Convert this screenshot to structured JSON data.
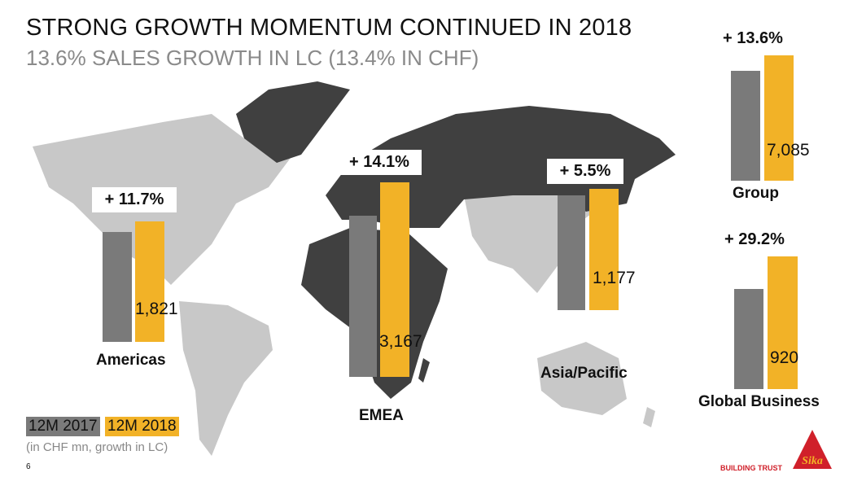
{
  "header": {
    "title": "STRONG GROWTH MOMENTUM CONTINUED IN 2018",
    "subtitle": "13.6% SALES GROWTH IN LC (13.4% IN CHF)"
  },
  "colors": {
    "2017": "#7a7a7a",
    "2018": "#f2b227",
    "map_light": "#c8c8c8",
    "map_dark": "#404040",
    "brand": "#d0202a"
  },
  "chart_data": {
    "type": "bar",
    "series": [
      {
        "name": "12M 2017"
      },
      {
        "name": "12M 2018"
      }
    ],
    "regions": [
      {
        "name": "Americas",
        "growth": "+ 11.7%",
        "value_2018": "1,821"
      },
      {
        "name": "EMEA",
        "growth": "+ 14.1%",
        "value_2018": "3,167"
      },
      {
        "name": "Asia/Pacific",
        "growth": "+ 5.5%",
        "value_2018": "1,177"
      },
      {
        "name": "Group",
        "growth": "+ 13.6%",
        "value_2018": "7,085"
      },
      {
        "name": "Global Business",
        "growth": "+ 29.2%",
        "value_2018": "920"
      }
    ]
  },
  "legend": {
    "label_2017": "12M 2017",
    "label_2018": "12M 2018",
    "note": "(in CHF mn, growth in LC)"
  },
  "footer": {
    "page": "6",
    "tagline": "BUILDING TRUST",
    "logo": "Sika"
  }
}
